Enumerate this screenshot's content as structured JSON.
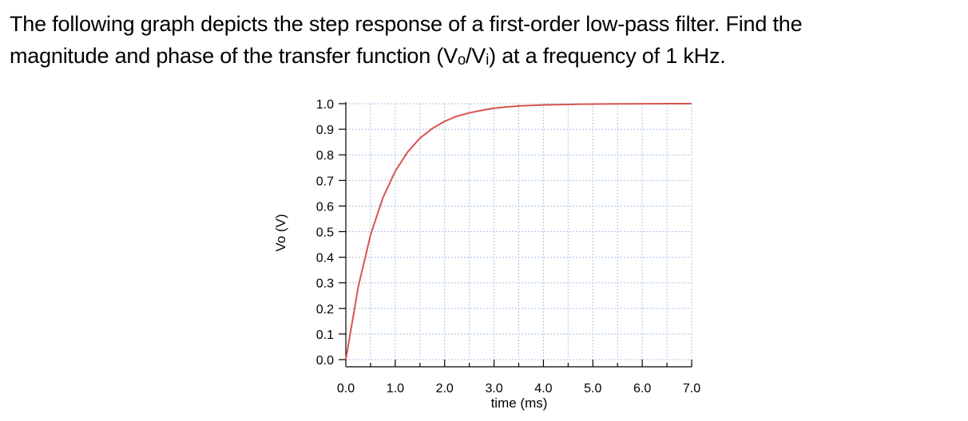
{
  "problem": {
    "line1": "The following graph depicts the step response of a first-order low-pass filter.  Find the",
    "line2": "magnitude and phase of the transfer function (Vₒ/Vᵢ) at a frequency of 1 kHz."
  },
  "chart_data": {
    "type": "line",
    "title": "",
    "xlabel": "time (ms)",
    "ylabel": "Vo (V)",
    "xlim": [
      0,
      7
    ],
    "ylim": [
      0,
      1
    ],
    "xticks": [
      0,
      1,
      2,
      3,
      4,
      5,
      6,
      7
    ],
    "xtick_labels": [
      "0.0",
      "1.0",
      "2.0",
      "3.0",
      "4.0",
      "5.0",
      "6.0",
      "7.0"
    ],
    "yticks": [
      0,
      0.1,
      0.2,
      0.3,
      0.4,
      0.5,
      0.6,
      0.7,
      0.8,
      0.9,
      1.0
    ],
    "ytick_labels": [
      "0.0",
      "0.1",
      "0.2",
      "0.3",
      "0.4",
      "0.5",
      "0.6",
      "0.7",
      "0.8",
      "0.9",
      "1.0"
    ],
    "grid": true,
    "series": [
      {
        "color": "#d9534f",
        "x": [
          0,
          0.25,
          0.5,
          0.75,
          1.0,
          1.25,
          1.5,
          1.75,
          2.0,
          2.25,
          2.5,
          2.75,
          3.0,
          3.25,
          3.5,
          3.75,
          4.0,
          4.25,
          4.5,
          4.75,
          5.0,
          5.25,
          5.5,
          5.75,
          6.0,
          6.25,
          6.5,
          6.75,
          7.0
        ],
        "y": [
          0.0,
          0.283,
          0.487,
          0.632,
          0.736,
          0.811,
          0.865,
          0.903,
          0.931,
          0.951,
          0.964,
          0.974,
          0.982,
          0.987,
          0.991,
          0.993,
          0.995,
          0.996,
          0.997,
          0.998,
          0.9985,
          0.9989,
          0.9992,
          0.9994,
          0.9996,
          0.9997,
          0.9998,
          0.9998,
          0.9999
        ]
      }
    ]
  }
}
